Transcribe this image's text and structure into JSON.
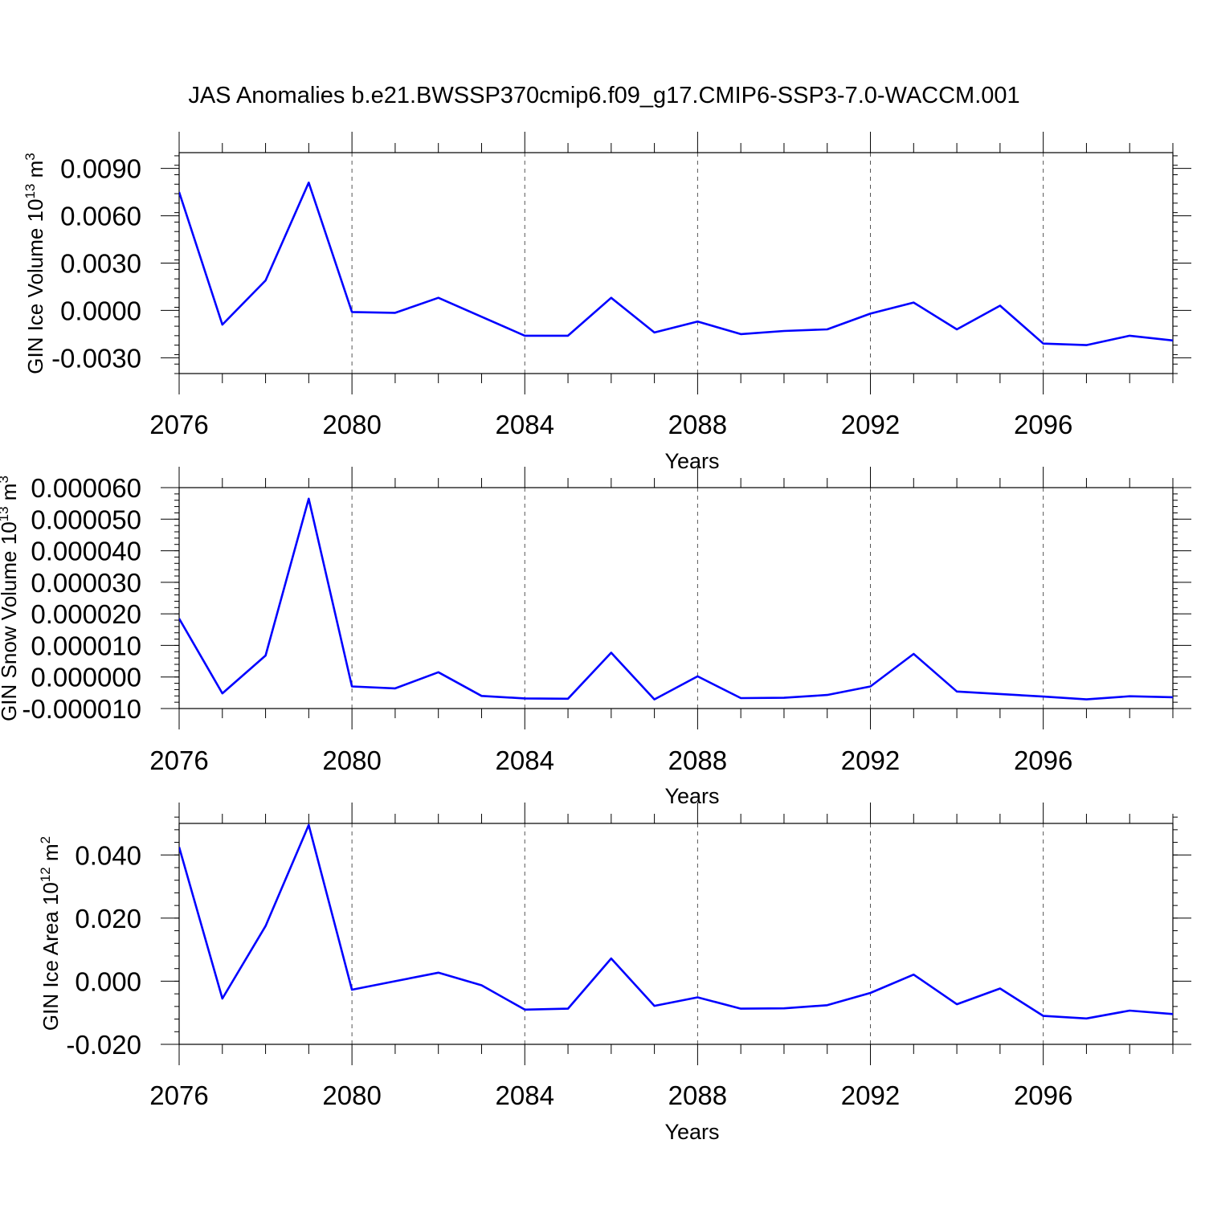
{
  "figure": {
    "title": "JAS Anomalies b.e21.BWSSP370cmip6.f09_g17.CMIP6-SSP3-7.0-WACCM.001",
    "line_color": "#0000ff"
  },
  "chart_data": [
    {
      "type": "line",
      "ylabel": "GIN Ice Volume 10",
      "ylabel_exponent": "13",
      "ylabel_unit": " m",
      "ylabel_unit_exponent": "3",
      "xlabel": "Years",
      "xlim": [
        2076,
        2099
      ],
      "ylim": [
        -0.004,
        0.01
      ],
      "x_ticks": [
        2076,
        2080,
        2084,
        2088,
        2092,
        2096
      ],
      "x_tick_labels": [
        "2076",
        "2080",
        "2084",
        "2088",
        "2092",
        "2096"
      ],
      "y_ticks": [
        0.009,
        0.006,
        0.003,
        0.0,
        -0.003
      ],
      "y_tick_labels": [
        "0.0090",
        "0.0060",
        "0.0030",
        "0.0000",
        "-0.0030"
      ],
      "y_minor_step": 0.0006,
      "grid": "vertical dashed at major x ticks",
      "series": [
        {
          "x": [
            2076,
            2077,
            2078,
            2079,
            2080,
            2081,
            2082,
            2083,
            2084,
            2085,
            2086,
            2087,
            2088,
            2089,
            2090,
            2091,
            2092,
            2093,
            2094,
            2095,
            2096,
            2097,
            2098,
            2099
          ],
          "values": [
            0.0075,
            -0.0009,
            0.0019,
            0.0081,
            -0.0001,
            -0.00015,
            0.0008,
            -0.0004,
            -0.0016,
            -0.0016,
            0.0008,
            -0.0014,
            -0.0007,
            -0.0015,
            -0.0013,
            -0.0012,
            -0.0002,
            0.0005,
            -0.0012,
            0.0003,
            -0.0021,
            -0.0022,
            -0.0016,
            -0.0019
          ]
        }
      ]
    },
    {
      "type": "line",
      "ylabel": "GIN Snow Volume 10",
      "ylabel_exponent": "13",
      "ylabel_unit": " m",
      "ylabel_unit_exponent": "3",
      "xlabel": "Years",
      "xlim": [
        2076,
        2099
      ],
      "ylim": [
        -1e-05,
        6e-05
      ],
      "x_ticks": [
        2076,
        2080,
        2084,
        2088,
        2092,
        2096
      ],
      "x_tick_labels": [
        "2076",
        "2080",
        "2084",
        "2088",
        "2092",
        "2096"
      ],
      "y_ticks": [
        6e-05,
        5e-05,
        4e-05,
        3e-05,
        2e-05,
        1e-05,
        0.0,
        -1e-05
      ],
      "y_tick_labels": [
        "0.000060",
        "0.000050",
        "0.000040",
        "0.000030",
        "0.000020",
        "0.000010",
        "0.000000",
        "-0.000010"
      ],
      "y_minor_step": 2e-06,
      "grid": "vertical dashed at major x ticks",
      "series": [
        {
          "x": [
            2076,
            2077,
            2078,
            2079,
            2080,
            2081,
            2082,
            2083,
            2084,
            2085,
            2086,
            2087,
            2088,
            2089,
            2090,
            2091,
            2092,
            2093,
            2094,
            2095,
            2096,
            2097,
            2098,
            2099
          ],
          "values": [
            1.85e-05,
            -5.2e-06,
            6.8e-06,
            5.65e-05,
            -3e-06,
            -3.6e-06,
            1.5e-06,
            -6e-06,
            -6.8e-06,
            -6.9e-06,
            7.7e-06,
            -7.1e-06,
            2e-07,
            -6.7e-06,
            -6.6e-06,
            -5.7e-06,
            -3e-06,
            7.3e-06,
            -4.6e-06,
            -5.4e-06,
            -6.2e-06,
            -7.1e-06,
            -6.1e-06,
            -6.4e-06
          ]
        }
      ]
    },
    {
      "type": "line",
      "ylabel": "GIN Ice Area 10",
      "ylabel_exponent": "12",
      "ylabel_unit": " m",
      "ylabel_unit_exponent": "2",
      "xlabel": "Years",
      "xlim": [
        2076,
        2099
      ],
      "ylim": [
        -0.02,
        0.05
      ],
      "x_ticks": [
        2076,
        2080,
        2084,
        2088,
        2092,
        2096
      ],
      "x_tick_labels": [
        "2076",
        "2080",
        "2084",
        "2088",
        "2092",
        "2096"
      ],
      "y_ticks": [
        0.04,
        0.02,
        0.0,
        -0.02
      ],
      "y_tick_labels": [
        "0.040",
        "0.020",
        "0.000",
        "-0.020"
      ],
      "y_minor_step": 0.004,
      "grid": "vertical dashed at major x ticks",
      "series": [
        {
          "x": [
            2076,
            2077,
            2078,
            2079,
            2080,
            2081,
            2082,
            2083,
            2084,
            2085,
            2086,
            2087,
            2088,
            2089,
            2090,
            2091,
            2092,
            2093,
            2094,
            2095,
            2096,
            2097,
            2098,
            2099
          ],
          "values": [
            0.0425,
            -0.0055,
            0.0175,
            0.0495,
            -0.0027,
            0.0,
            0.0027,
            -0.0013,
            -0.009,
            -0.0087,
            0.0072,
            -0.0078,
            -0.0051,
            -0.0087,
            -0.0086,
            -0.0076,
            -0.0037,
            0.0021,
            -0.0073,
            -0.0023,
            -0.011,
            -0.0118,
            -0.0093,
            -0.0104
          ]
        }
      ]
    }
  ]
}
